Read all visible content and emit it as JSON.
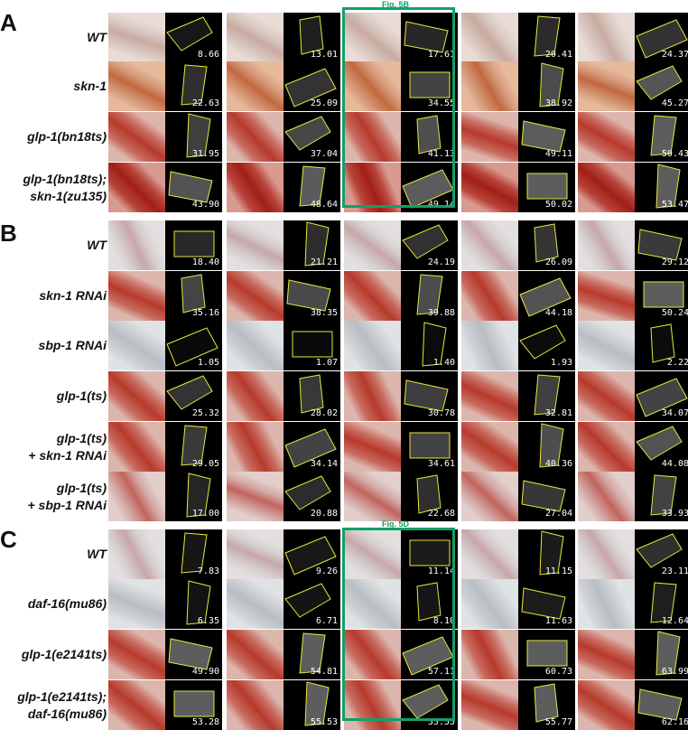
{
  "panels": [
    {
      "letter": "A",
      "fig_label": "Fig. 5B",
      "rows": [
        {
          "label": "WT",
          "label2": "",
          "values": [
            "8.66",
            "13.01",
            "17.61",
            "20.41",
            "24.37"
          ],
          "tone": "pink"
        },
        {
          "label": "skn-1",
          "label2": "",
          "values": [
            "22.63",
            "25.09",
            "34.55",
            "38.92",
            "45.27"
          ],
          "tone": "orange"
        },
        {
          "label": "glp-1(bn18ts)",
          "label2": "",
          "values": [
            "31.95",
            "37.04",
            "41.13",
            "49.11",
            "50.43"
          ],
          "tone": "red"
        },
        {
          "label": "glp-1(bn18ts);",
          "label2": "skn-1(zu135)",
          "values": [
            "43.90",
            "48.64",
            "49.14",
            "50.02",
            "53.47"
          ],
          "tone": "deepred"
        }
      ]
    },
    {
      "letter": "B",
      "fig_label": "",
      "rows": [
        {
          "label": "WT",
          "label2": "",
          "values": [
            "18.40",
            "21.21",
            "24.19",
            "26.09",
            "29.12"
          ],
          "tone": "pale"
        },
        {
          "label": "skn-1 RNAi",
          "label2": "",
          "values": [
            "35.16",
            "38.35",
            "39.88",
            "44.18",
            "50.24"
          ],
          "tone": "red"
        },
        {
          "label": "sbp-1 RNAi",
          "label2": "",
          "values": [
            "1.05",
            "1.07",
            "1.40",
            "1.93",
            "2.22"
          ],
          "tone": "grey"
        },
        {
          "label": "glp-1(ts)",
          "label2": "",
          "values": [
            "25.32",
            "28.02",
            "30.78",
            "32.81",
            "34.07"
          ],
          "tone": "red"
        },
        {
          "label": "glp-1(ts)",
          "label2": "+ skn-1 RNAi",
          "values": [
            "29.05",
            "34.14",
            "34.61",
            "40.36",
            "44.08"
          ],
          "tone": "red"
        },
        {
          "label": "glp-1(ts)",
          "label2": "+ sbp-1 RNAi",
          "values": [
            "17.00",
            "20.88",
            "22.68",
            "27.04",
            "33.93"
          ],
          "tone": "pinkred"
        }
      ]
    },
    {
      "letter": "C",
      "fig_label": "Fig. 5D",
      "rows": [
        {
          "label": "WT",
          "label2": "",
          "values": [
            "7.83",
            "9.26",
            "11.14",
            "11.15",
            "23.11"
          ],
          "tone": "pale"
        },
        {
          "label": "daf-16(mu86)",
          "label2": "",
          "values": [
            "6.35",
            "6.71",
            "8.10",
            "11.63",
            "12.64"
          ],
          "tone": "grey"
        },
        {
          "label": "glp-1(e2141ts)",
          "label2": "",
          "values": [
            "49.90",
            "54.81",
            "57.11",
            "60.73",
            "63.99"
          ],
          "tone": "red"
        },
        {
          "label": "glp-1(e2141ts);",
          "label2": "daf-16(mu86)",
          "values": [
            "53.28",
            "55.53",
            "55.55",
            "55.77",
            "62.16"
          ],
          "tone": "red"
        }
      ]
    }
  ],
  "colors": {
    "highlight_box": "#11a06a",
    "roi_outline": "#e8e83a",
    "fluorescence_bg": "#000000"
  }
}
